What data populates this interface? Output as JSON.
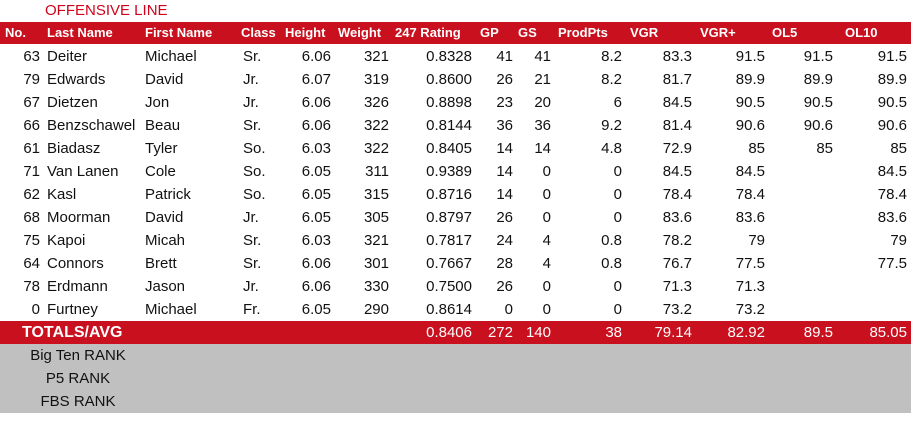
{
  "title": "OFFENSIVE LINE",
  "table": {
    "header": [
      "No.",
      "Last Name",
      "First Name",
      "Class",
      "Height",
      "Weight",
      "247 Rating",
      "GP",
      "GS",
      "ProdPts",
      "VGR",
      "VGR+",
      "OL5",
      "OL10"
    ],
    "rows": [
      [
        "63",
        "Deiter",
        "Michael",
        "Sr.",
        "6.06",
        "321",
        "0.8328",
        "41",
        "41",
        "8.2",
        "83.3",
        "91.5",
        "91.5",
        "91.5"
      ],
      [
        "79",
        "Edwards",
        "David",
        "Jr.",
        "6.07",
        "319",
        "0.8600",
        "26",
        "21",
        "8.2",
        "81.7",
        "89.9",
        "89.9",
        "89.9"
      ],
      [
        "67",
        "Dietzen",
        "Jon",
        "Jr.",
        "6.06",
        "326",
        "0.8898",
        "23",
        "20",
        "6",
        "84.5",
        "90.5",
        "90.5",
        "90.5"
      ],
      [
        "66",
        "Benzschawel",
        "Beau",
        "Sr.",
        "6.06",
        "322",
        "0.8144",
        "36",
        "36",
        "9.2",
        "81.4",
        "90.6",
        "90.6",
        "90.6"
      ],
      [
        "61",
        "Biadasz",
        "Tyler",
        "So.",
        "6.03",
        "322",
        "0.8405",
        "14",
        "14",
        "4.8",
        "72.9",
        "85",
        "85",
        "85"
      ],
      [
        "71",
        "Van Lanen",
        "Cole",
        "So.",
        "6.05",
        "311",
        "0.9389",
        "14",
        "0",
        "0",
        "84.5",
        "84.5",
        null,
        "84.5"
      ],
      [
        "62",
        "Kasl",
        "Patrick",
        "So.",
        "6.05",
        "315",
        "0.8716",
        "14",
        "0",
        "0",
        "78.4",
        "78.4",
        null,
        "78.4"
      ],
      [
        "68",
        "Moorman",
        "David",
        "Jr.",
        "6.05",
        "305",
        "0.8797",
        "26",
        "0",
        "0",
        "83.6",
        "83.6",
        null,
        "83.6"
      ],
      [
        "75",
        "Kapoi",
        "Micah",
        "Sr.",
        "6.03",
        "321",
        "0.7817",
        "24",
        "4",
        "0.8",
        "78.2",
        "79",
        null,
        "79"
      ],
      [
        "64",
        "Connors",
        "Brett",
        "Sr.",
        "6.06",
        "301",
        "0.7667",
        "28",
        "4",
        "0.8",
        "76.7",
        "77.5",
        null,
        "77.5"
      ],
      [
        "78",
        "Erdmann",
        "Jason",
        "Jr.",
        "6.06",
        "330",
        "0.7500",
        "26",
        "0",
        "0",
        "71.3",
        "71.3",
        null,
        null
      ],
      [
        "0",
        "Furtney",
        "Michael",
        "Fr.",
        "6.05",
        "290",
        "0.8614",
        "0",
        "0",
        "0",
        "73.2",
        "73.2",
        null,
        null
      ]
    ],
    "totals": {
      "label": "TOTALS/AVG",
      "cells": [
        null,
        null,
        null,
        null,
        null,
        null,
        "0.8406",
        "272",
        "140",
        "38",
        "79.14",
        "82.92",
        "89.5",
        "85.05"
      ]
    },
    "ranks": [
      "Big Ten RANK",
      "P5 RANK",
      "FBS RANK"
    ]
  }
}
